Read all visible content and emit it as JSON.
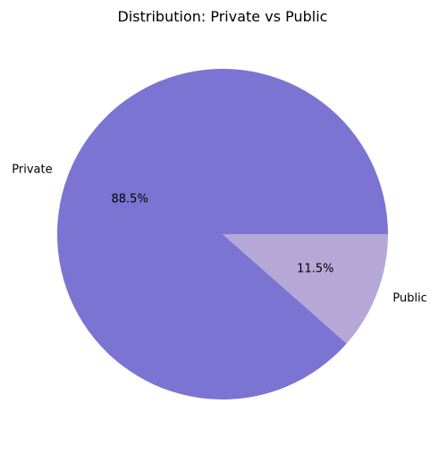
{
  "chart_data": {
    "type": "pie",
    "title": "Distribution: Private vs Public",
    "categories": [
      "Private",
      "Public"
    ],
    "values": [
      88.5,
      11.5
    ],
    "value_labels": [
      "88.5%",
      "11.5%"
    ],
    "colors": [
      "#7b74d3",
      "#b5a8d6"
    ],
    "start_angle_deg": 0,
    "direction": "counterclockwise"
  }
}
